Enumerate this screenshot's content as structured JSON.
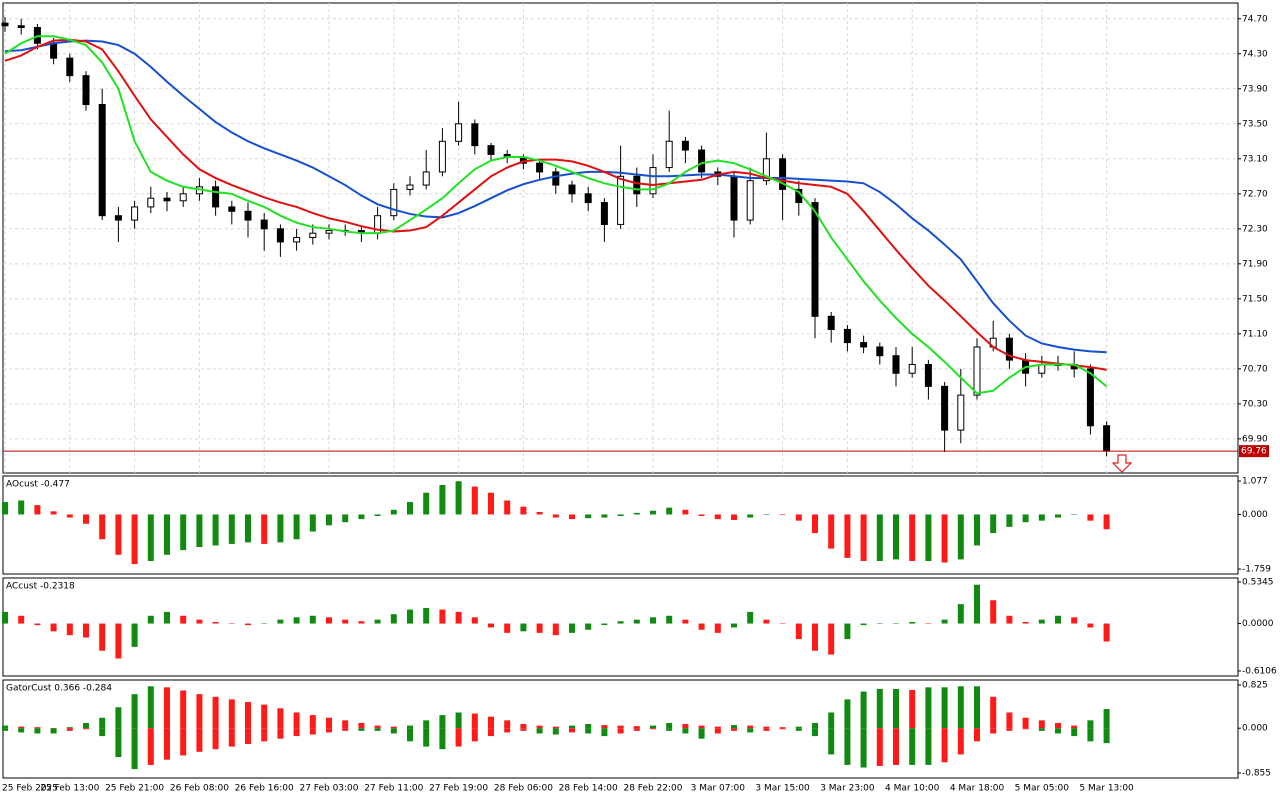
{
  "chart_data": [
    {
      "type": "candlestick",
      "categories": [
        "25 Feb 2025",
        null,
        null,
        null,
        "25 Feb 13:00",
        null,
        null,
        null,
        "25 Feb 21:00",
        null,
        null,
        null,
        "26 Feb 08:00",
        null,
        null,
        null,
        "26 Feb 16:00",
        null,
        null,
        null,
        "27 Feb 03:00",
        null,
        null,
        null,
        "27 Feb 11:00",
        null,
        null,
        null,
        "27 Feb 19:00",
        null,
        null,
        null,
        "28 Feb 06:00",
        null,
        null,
        null,
        "28 Feb 14:00",
        null,
        null,
        null,
        "28 Feb 22:00",
        null,
        null,
        null,
        "3 Mar 07:00",
        null,
        null,
        null,
        "3 Mar 15:00",
        null,
        null,
        null,
        "3 Mar 23:00",
        null,
        null,
        null,
        "4 Mar 10:00",
        null,
        null,
        null,
        "4 Mar 18:00",
        null,
        null,
        null,
        "5 Mar 05:00",
        null,
        null,
        null,
        "5 Mar 13:00"
      ],
      "open": [
        74.65,
        74.62,
        74.6,
        74.42,
        74.25,
        74.05,
        73.72,
        72.45,
        72.4,
        72.55,
        72.65,
        72.62,
        72.7,
        72.78,
        72.55,
        72.5,
        72.4,
        72.3,
        72.15,
        72.2,
        72.25,
        72.28,
        72.28,
        72.25,
        72.45,
        72.75,
        72.8,
        72.95,
        73.3,
        73.5,
        73.25,
        73.15,
        73.12,
        73.05,
        72.95,
        72.8,
        72.7,
        72.6,
        72.35,
        72.9,
        72.7,
        73.0,
        73.3,
        73.2,
        72.95,
        72.9,
        72.4,
        72.85,
        73.1,
        72.75,
        72.6,
        71.3,
        71.15,
        71.0,
        70.95,
        70.85,
        70.65,
        70.75,
        70.5,
        70.0,
        70.4,
        70.95,
        71.05,
        70.8,
        70.65,
        70.75,
        70.75,
        70.7,
        70.05
      ],
      "high": [
        74.72,
        74.7,
        74.64,
        74.48,
        74.3,
        74.1,
        73.9,
        72.55,
        72.62,
        72.78,
        72.72,
        72.78,
        72.88,
        72.85,
        72.62,
        72.6,
        72.48,
        72.35,
        72.3,
        72.35,
        72.35,
        72.35,
        72.32,
        72.55,
        72.82,
        72.9,
        73.2,
        73.45,
        73.75,
        73.55,
        73.28,
        73.2,
        73.15,
        73.08,
        73.0,
        72.85,
        72.78,
        72.65,
        73.25,
        73.0,
        73.15,
        73.65,
        73.35,
        73.25,
        73.0,
        72.95,
        73.0,
        73.4,
        73.15,
        72.85,
        72.65,
        71.35,
        71.2,
        71.08,
        71.0,
        70.95,
        70.95,
        70.8,
        70.55,
        70.7,
        71.05,
        71.25,
        71.1,
        70.88,
        70.85,
        70.85,
        70.9,
        70.75,
        70.1
      ],
      "low": [
        74.55,
        74.52,
        74.35,
        74.18,
        73.98,
        73.65,
        72.4,
        72.15,
        72.3,
        72.48,
        72.5,
        72.55,
        72.62,
        72.45,
        72.35,
        72.2,
        72.05,
        71.98,
        72.05,
        72.12,
        72.18,
        72.22,
        72.15,
        72.18,
        72.4,
        72.68,
        72.75,
        72.9,
        73.25,
        73.15,
        73.08,
        73.05,
        72.98,
        72.85,
        72.7,
        72.6,
        72.5,
        72.15,
        72.3,
        72.55,
        72.65,
        72.95,
        73.05,
        72.88,
        72.8,
        72.2,
        72.35,
        72.8,
        72.4,
        72.45,
        71.05,
        71.0,
        70.9,
        70.88,
        70.75,
        70.5,
        70.6,
        70.35,
        69.75,
        69.85,
        70.35,
        70.9,
        70.7,
        70.5,
        70.6,
        70.68,
        70.6,
        69.95,
        69.7
      ],
      "close": [
        74.62,
        74.6,
        74.42,
        74.25,
        74.05,
        73.72,
        72.45,
        72.4,
        72.55,
        72.65,
        72.62,
        72.7,
        72.78,
        72.55,
        72.5,
        72.4,
        72.3,
        72.15,
        72.2,
        72.25,
        72.28,
        72.28,
        72.25,
        72.45,
        72.75,
        72.8,
        72.95,
        73.3,
        73.5,
        73.25,
        73.15,
        73.12,
        73.05,
        72.95,
        72.8,
        72.7,
        72.6,
        72.35,
        72.9,
        72.7,
        73.0,
        73.3,
        73.2,
        72.95,
        72.9,
        72.4,
        72.85,
        73.1,
        72.75,
        72.6,
        71.3,
        71.15,
        71.0,
        70.95,
        70.85,
        70.65,
        70.75,
        70.5,
        70.0,
        70.4,
        70.95,
        71.05,
        70.8,
        70.65,
        70.75,
        70.75,
        70.7,
        70.05,
        69.76
      ],
      "lines": [
        {
          "color": "#1550d0",
          "values": [
            74.33,
            74.34,
            74.38,
            74.42,
            74.44,
            74.45,
            74.44,
            74.4,
            74.3,
            74.15,
            73.98,
            73.82,
            73.67,
            73.52,
            73.4,
            73.3,
            73.22,
            73.15,
            73.08,
            73.0,
            72.9,
            72.8,
            72.68,
            72.58,
            72.52,
            72.47,
            72.44,
            72.43,
            72.48,
            72.56,
            72.65,
            72.74,
            72.81,
            72.86,
            72.9,
            72.93,
            72.95,
            72.95,
            72.94,
            72.92,
            72.9,
            72.9,
            72.91,
            72.92,
            72.92,
            72.9,
            72.88,
            72.88,
            72.88,
            72.87,
            72.86,
            72.85,
            72.84,
            72.82,
            72.72,
            72.58,
            72.42,
            72.28,
            72.12,
            71.95,
            71.7,
            71.45,
            71.25,
            71.08,
            70.99,
            70.95,
            70.92,
            70.9,
            70.89
          ]
        },
        {
          "color": "#e01010",
          "values": [
            74.22,
            74.28,
            74.38,
            74.45,
            74.46,
            74.44,
            74.35,
            74.1,
            73.82,
            73.55,
            73.35,
            73.15,
            72.98,
            72.88,
            72.8,
            72.73,
            72.66,
            72.6,
            72.55,
            72.48,
            72.42,
            72.38,
            72.33,
            72.29,
            72.27,
            72.28,
            72.32,
            72.45,
            72.6,
            72.75,
            72.9,
            73.0,
            73.07,
            73.09,
            73.09,
            73.07,
            73.02,
            72.95,
            72.87,
            72.82,
            72.8,
            72.82,
            72.84,
            72.86,
            72.92,
            72.95,
            72.93,
            72.88,
            72.85,
            72.82,
            72.8,
            72.78,
            72.7,
            72.5,
            72.28,
            72.06,
            71.85,
            71.65,
            71.48,
            71.3,
            71.12,
            70.95,
            70.85,
            70.8,
            70.78,
            70.76,
            70.74,
            70.72,
            70.69
          ]
        },
        {
          "color": "#22e022",
          "values": [
            74.3,
            74.42,
            74.5,
            74.5,
            74.46,
            74.4,
            74.2,
            73.9,
            73.3,
            72.95,
            72.85,
            72.78,
            72.75,
            72.72,
            72.7,
            72.62,
            72.55,
            72.45,
            72.37,
            72.32,
            72.3,
            72.27,
            72.25,
            72.25,
            72.28,
            72.4,
            72.52,
            72.65,
            72.82,
            72.98,
            73.08,
            73.12,
            73.12,
            73.08,
            73.02,
            72.95,
            72.88,
            72.82,
            72.78,
            72.75,
            72.75,
            72.82,
            72.95,
            73.05,
            73.08,
            73.05,
            72.98,
            72.9,
            72.82,
            72.72,
            72.5,
            72.2,
            71.95,
            71.7,
            71.48,
            71.28,
            71.1,
            70.95,
            70.78,
            70.6,
            70.42,
            70.45,
            70.6,
            70.72,
            70.75,
            70.75,
            70.75,
            70.65,
            70.5
          ]
        }
      ],
      "ylim": [
        69.51,
        74.88
      ],
      "yticks": [
        {
          "value": 74.7,
          "label": "74.70"
        },
        {
          "value": 74.3,
          "label": "74.30"
        },
        {
          "value": 73.9,
          "label": "73.90"
        },
        {
          "value": 73.5,
          "label": "73.50"
        },
        {
          "value": 73.1,
          "label": "73.10"
        },
        {
          "value": 72.7,
          "label": "72.70"
        },
        {
          "value": 72.3,
          "label": "72.30"
        },
        {
          "value": 71.9,
          "label": "71.90"
        },
        {
          "value": 71.5,
          "label": "71.50"
        },
        {
          "value": 71.1,
          "label": "71.10"
        },
        {
          "value": 70.7,
          "label": "70.70"
        },
        {
          "value": 70.3,
          "label": "70.30"
        },
        {
          "value": 69.9,
          "label": "69.90"
        }
      ],
      "last_price": 69.76,
      "grid": true
    },
    {
      "type": "bar",
      "label": "AOcust -0.477",
      "up_color": "#108a10",
      "down_color": "#ff1a1a",
      "values": [
        0.4,
        0.45,
        0.3,
        0.1,
        -0.1,
        -0.3,
        -0.8,
        -1.3,
        -1.6,
        -1.5,
        -1.3,
        -1.15,
        -1.05,
        -1.0,
        -0.95,
        -0.9,
        -0.95,
        -0.9,
        -0.8,
        -0.55,
        -0.35,
        -0.25,
        -0.15,
        -0.05,
        0.15,
        0.4,
        0.7,
        0.95,
        1.07,
        0.9,
        0.7,
        0.45,
        0.25,
        0.08,
        -0.1,
        -0.15,
        -0.12,
        -0.1,
        -0.05,
        0.05,
        0.12,
        0.22,
        0.15,
        -0.05,
        -0.15,
        -0.18,
        -0.1,
        0.0,
        -0.02,
        -0.2,
        -0.6,
        -1.1,
        -1.4,
        -1.5,
        -1.5,
        -1.45,
        -1.5,
        -1.5,
        -1.55,
        -1.45,
        -1.0,
        -0.6,
        -0.4,
        -0.25,
        -0.2,
        -0.1,
        0.0,
        -0.2,
        -0.477
      ],
      "ylim": [
        -1.92,
        1.24
      ],
      "yticks": [
        1.077,
        {
          "value": 0,
          "label": "0.000"
        },
        -1.759
      ]
    },
    {
      "type": "bar",
      "label": "ACcust -0.2318",
      "up_color": "#108a10",
      "down_color": "#ff1a1a",
      "values": [
        0.15,
        0.1,
        -0.02,
        -0.1,
        -0.15,
        -0.18,
        -0.35,
        -0.45,
        -0.3,
        0.1,
        0.15,
        0.1,
        0.05,
        0.02,
        0.0,
        -0.02,
        0.0,
        0.05,
        0.08,
        0.1,
        0.08,
        0.05,
        0.03,
        0.05,
        0.12,
        0.18,
        0.2,
        0.18,
        0.15,
        0.08,
        -0.05,
        -0.12,
        -0.1,
        -0.12,
        -0.15,
        -0.12,
        -0.08,
        -0.02,
        0.03,
        0.05,
        0.08,
        0.1,
        0.05,
        -0.08,
        -0.12,
        -0.05,
        0.15,
        0.05,
        0.0,
        -0.2,
        -0.35,
        -0.4,
        -0.2,
        -0.02,
        0.0,
        0.0,
        0.02,
        0.0,
        0.05,
        0.25,
        0.5,
        0.3,
        0.1,
        0.02,
        0.05,
        0.1,
        0.08,
        -0.05,
        -0.2318
      ],
      "ylim": [
        -0.6756,
        0.5865
      ],
      "yticks": [
        0.5345,
        {
          "value": 0,
          "label": "0.0000"
        },
        -0.6106
      ]
    },
    {
      "type": "gator",
      "label": "GatorCust 0.366 -0.284",
      "up_color": "#108a10",
      "down_color": "#ff1a1a",
      "upper": [
        0.05,
        0.03,
        0.02,
        0.0,
        0.02,
        0.1,
        0.2,
        0.4,
        0.65,
        0.8,
        0.78,
        0.72,
        0.65,
        0.6,
        0.55,
        0.5,
        0.45,
        0.38,
        0.3,
        0.25,
        0.2,
        0.15,
        0.1,
        0.05,
        0.03,
        0.05,
        0.15,
        0.25,
        0.3,
        0.28,
        0.22,
        0.15,
        0.08,
        0.05,
        0.03,
        0.05,
        0.08,
        0.06,
        0.05,
        0.04,
        0.05,
        0.1,
        0.08,
        0.05,
        0.03,
        0.06,
        0.05,
        0.03,
        0.02,
        0.03,
        0.1,
        0.3,
        0.55,
        0.7,
        0.75,
        0.75,
        0.73,
        0.78,
        0.78,
        0.8,
        0.8,
        0.6,
        0.3,
        0.2,
        0.15,
        0.1,
        0.05,
        0.15,
        0.366
      ],
      "lower": [
        -0.05,
        -0.08,
        -0.1,
        -0.1,
        -0.05,
        -0.02,
        -0.15,
        -0.55,
        -0.78,
        -0.7,
        -0.6,
        -0.52,
        -0.45,
        -0.4,
        -0.35,
        -0.3,
        -0.25,
        -0.2,
        -0.15,
        -0.12,
        -0.08,
        -0.05,
        -0.05,
        -0.05,
        -0.1,
        -0.25,
        -0.35,
        -0.4,
        -0.35,
        -0.25,
        -0.15,
        -0.08,
        -0.05,
        -0.1,
        -0.12,
        -0.08,
        -0.1,
        -0.15,
        -0.1,
        -0.05,
        -0.02,
        -0.05,
        -0.1,
        -0.2,
        -0.1,
        -0.05,
        -0.08,
        -0.05,
        -0.02,
        -0.05,
        -0.15,
        -0.5,
        -0.7,
        -0.75,
        -0.72,
        -0.7,
        -0.7,
        -0.7,
        -0.65,
        -0.5,
        -0.25,
        -0.1,
        -0.05,
        -0.02,
        -0.05,
        -0.1,
        -0.15,
        -0.25,
        -0.284
      ],
      "ylim": [
        -0.95,
        0.92
      ],
      "yticks": [
        0.825,
        {
          "value": 0,
          "label": "0.000"
        },
        -0.855
      ]
    }
  ]
}
